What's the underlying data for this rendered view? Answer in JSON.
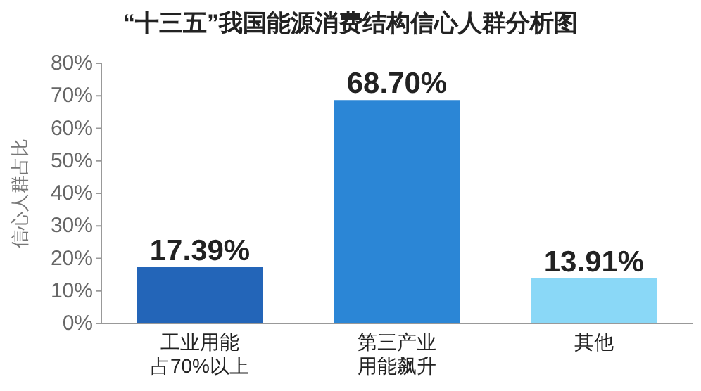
{
  "chart_data": {
    "type": "bar",
    "title": "“十三五”我国能源消费结构信心人群分析图",
    "ylabel": "信心人群占比",
    "categories": [
      "工业用能占70%以上",
      "第三产业用能飙升",
      "其他"
    ],
    "values": [
      17.39,
      68.7,
      13.91
    ],
    "value_labels": [
      "17.39%",
      "68.70%",
      "13.91%"
    ],
    "colors": [
      "#2365b8",
      "#2b86d6",
      "#8ad8f7"
    ],
    "ylim": [
      0,
      80
    ],
    "yticks": [
      {
        "value": 0,
        "label": "0%"
      },
      {
        "value": 10,
        "label": "10%"
      },
      {
        "value": 20,
        "label": "20%"
      },
      {
        "value": 30,
        "label": "30%"
      },
      {
        "value": 40,
        "label": "40%"
      },
      {
        "value": 50,
        "label": "50%"
      },
      {
        "value": 60,
        "label": "60%"
      },
      {
        "value": 70,
        "label": "70%"
      },
      {
        "value": 80,
        "label": "80%"
      }
    ]
  }
}
